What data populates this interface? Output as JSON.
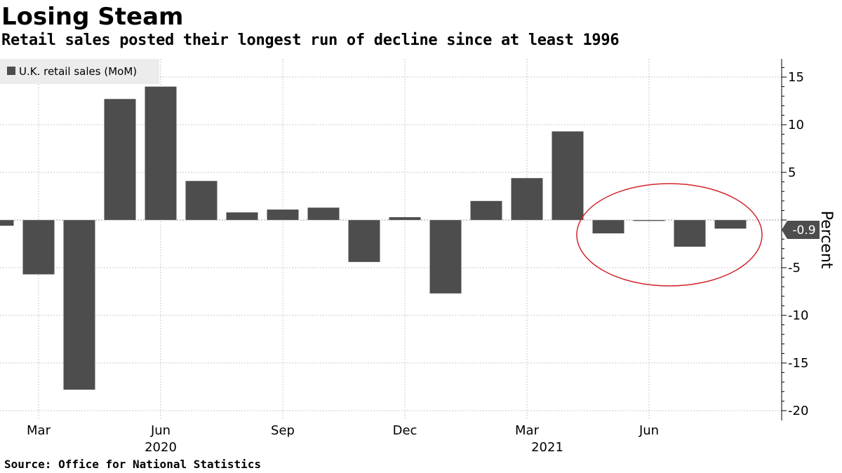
{
  "title": "Losing Steam",
  "subtitle": "Retail sales posted their longest run of decline since at least 1996",
  "source": "Source:  Office for National Statistics",
  "chart_data": {
    "type": "bar",
    "categories": [
      "Feb 2020",
      "Mar 2020",
      "Apr 2020",
      "May 2020",
      "Jun 2020",
      "Jul 2020",
      "Aug 2020",
      "Sep 2020",
      "Oct 2020",
      "Nov 2020",
      "Dec 2020",
      "Jan 2021",
      "Feb 2021",
      "Mar 2021",
      "Apr 2021",
      "May 2021",
      "Jun 2021",
      "Jul 2021",
      "Aug 2021"
    ],
    "series": [
      {
        "name": "U.K. retail sales (MoM)",
        "values": [
          -0.6,
          -5.7,
          -17.8,
          12.7,
          14.0,
          4.1,
          0.8,
          1.1,
          1.3,
          -4.4,
          0.3,
          -7.7,
          2.0,
          4.4,
          9.3,
          -1.4,
          -0.1,
          -2.8,
          -0.9
        ],
        "color": "#4d4d4d"
      }
    ],
    "x_ticks": [
      {
        "label": "Mar",
        "index": 1
      },
      {
        "label": "Jun",
        "index": 4
      },
      {
        "label": "Sep",
        "index": 7
      },
      {
        "label": "Dec",
        "index": 10
      },
      {
        "label": "Mar",
        "index": 13
      },
      {
        "label": "Jun",
        "index": 16
      }
    ],
    "year_labels": [
      {
        "label": "2020",
        "index": 4
      },
      {
        "label": "2021",
        "index": 13.5
      }
    ],
    "y_ticks": [
      "15",
      "10",
      "5",
      "0",
      "-5",
      "-10",
      "-15",
      "-20"
    ],
    "y_tick_values": [
      15,
      10,
      5,
      0,
      -5,
      -10,
      -15,
      -20
    ],
    "ylim": [
      -20.5,
      17
    ],
    "ylabel": "Percent",
    "last_value_label": "-0.9",
    "grid": true,
    "legend_position": "top-left",
    "highlight": {
      "shape": "ellipse",
      "color": "#d0262c",
      "from_index": 15,
      "to_index": 18
    }
  }
}
